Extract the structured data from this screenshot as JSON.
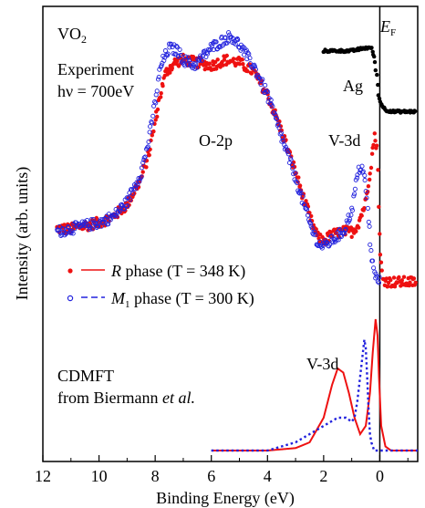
{
  "chart_data": {
    "type": "line",
    "xlabel": "Binding Energy (eV)",
    "ylabel": "Intensity (arb. units)",
    "xlim": [
      12,
      -1.35
    ],
    "x_reversed": true,
    "y_scale": "arbitrary (no tick labels)",
    "x_ticks": [
      12,
      10,
      8,
      6,
      4,
      2,
      0
    ],
    "x_tick_labels": [
      "12",
      "10",
      "8",
      "6",
      "4",
      "2",
      "0"
    ],
    "grid": false,
    "fermi_level_line_x": 0,
    "annotations": {
      "sample_main": "VO",
      "sample_sub": "2",
      "experiment_line1": "Experiment",
      "experiment_line2": "hν = 700eV",
      "o2p": "O-2p",
      "v3d_exp": "V-3d",
      "ag": "Ag",
      "ef_main": "E",
      "ef_sub": "F",
      "v3d_theory": "V-3d",
      "cdmft_line1": "CDMFT",
      "cdmft_line2_prefix": "from Biermann ",
      "cdmft_line2_italic": "et al."
    },
    "legend": {
      "placement": "center-left",
      "entries": [
        {
          "series": "R",
          "symbol": "R",
          "text": " phase (T = 348 K)"
        },
        {
          "series": "M1",
          "symbol": "M",
          "symbol_sub": "1",
          "text": " phase (T = 300 K)"
        }
      ]
    },
    "colors": {
      "R": "#ee1111",
      "M1": "#2222dd",
      "Ag": "#000000",
      "axis": "#000000"
    },
    "series": [
      {
        "id": "R",
        "kind": "experiment",
        "marker": "filled-dot",
        "points": [
          [
            11.5,
            0.29
          ],
          [
            11,
            0.29
          ],
          [
            10.5,
            0.3
          ],
          [
            10,
            0.31
          ],
          [
            9.5,
            0.33
          ],
          [
            9,
            0.37
          ],
          [
            8.5,
            0.46
          ],
          [
            8.2,
            0.55
          ],
          [
            8,
            0.65
          ],
          [
            7.8,
            0.75
          ],
          [
            7.6,
            0.82
          ],
          [
            7.3,
            0.85
          ],
          [
            7,
            0.86
          ],
          [
            6.5,
            0.85
          ],
          [
            6,
            0.84
          ],
          [
            5.5,
            0.86
          ],
          [
            5,
            0.85
          ],
          [
            4.5,
            0.82
          ],
          [
            4,
            0.74
          ],
          [
            3.5,
            0.62
          ],
          [
            3,
            0.48
          ],
          [
            2.5,
            0.33
          ],
          [
            2.2,
            0.26
          ],
          [
            2,
            0.25
          ],
          [
            1.7,
            0.27
          ],
          [
            1.3,
            0.28
          ],
          [
            1,
            0.28
          ],
          [
            0.8,
            0.3
          ],
          [
            0.5,
            0.38
          ],
          [
            0.3,
            0.52
          ],
          [
            0.2,
            0.6
          ],
          [
            0.1,
            0.57
          ],
          [
            0.05,
            0.42
          ],
          [
            0,
            0.22
          ],
          [
            -0.1,
            0.12
          ],
          [
            -0.3,
            0.11
          ],
          [
            -0.7,
            0.11
          ],
          [
            -1.3,
            0.11
          ]
        ]
      },
      {
        "id": "M1",
        "kind": "experiment",
        "marker": "open-circle",
        "points": [
          [
            11.5,
            0.28
          ],
          [
            11,
            0.29
          ],
          [
            10.5,
            0.3
          ],
          [
            10,
            0.31
          ],
          [
            9.5,
            0.33
          ],
          [
            9,
            0.38
          ],
          [
            8.5,
            0.48
          ],
          [
            8.2,
            0.6
          ],
          [
            8,
            0.72
          ],
          [
            7.8,
            0.84
          ],
          [
            7.5,
            0.9
          ],
          [
            7.2,
            0.89
          ],
          [
            7,
            0.86
          ],
          [
            6.6,
            0.84
          ],
          [
            6.3,
            0.87
          ],
          [
            6,
            0.9
          ],
          [
            5.5,
            0.93
          ],
          [
            5.3,
            0.94
          ],
          [
            5,
            0.91
          ],
          [
            4.5,
            0.84
          ],
          [
            4,
            0.74
          ],
          [
            3.5,
            0.6
          ],
          [
            3,
            0.46
          ],
          [
            2.5,
            0.31
          ],
          [
            2.2,
            0.24
          ],
          [
            2,
            0.23
          ],
          [
            1.7,
            0.25
          ],
          [
            1.3,
            0.28
          ],
          [
            1,
            0.35
          ],
          [
            0.8,
            0.47
          ],
          [
            0.7,
            0.5
          ],
          [
            0.6,
            0.49
          ],
          [
            0.5,
            0.43
          ],
          [
            0.4,
            0.32
          ],
          [
            0.3,
            0.2
          ],
          [
            0.2,
            0.14
          ],
          [
            0.1,
            0.12
          ],
          [
            0,
            0.11
          ]
        ]
      },
      {
        "id": "Ag",
        "kind": "reference",
        "marker": "filled-dot",
        "points": [
          [
            2,
            0.89
          ],
          [
            1.5,
            0.89
          ],
          [
            1,
            0.89
          ],
          [
            0.5,
            0.9
          ],
          [
            0.3,
            0.9
          ],
          [
            0.2,
            0.87
          ],
          [
            0.1,
            0.8
          ],
          [
            0.05,
            0.74
          ],
          [
            0,
            0.72
          ],
          [
            -0.2,
            0.69
          ],
          [
            -0.5,
            0.685
          ],
          [
            -1,
            0.685
          ],
          [
            -1.3,
            0.685
          ]
        ]
      },
      {
        "id": "R",
        "kind": "theory",
        "style": "solid",
        "points": [
          [
            6,
            0
          ],
          [
            4,
            0
          ],
          [
            3,
            0.003
          ],
          [
            2.5,
            0.01
          ],
          [
            2,
            0.04
          ],
          [
            1.7,
            0.08
          ],
          [
            1.5,
            0.1
          ],
          [
            1.3,
            0.095
          ],
          [
            1.1,
            0.07
          ],
          [
            0.9,
            0.04
          ],
          [
            0.7,
            0.02
          ],
          [
            0.5,
            0.03
          ],
          [
            0.35,
            0.07
          ],
          [
            0.25,
            0.12
          ],
          [
            0.15,
            0.16
          ],
          [
            0.08,
            0.14
          ],
          [
            0.03,
            0.09
          ],
          [
            -0.05,
            0.03
          ],
          [
            -0.2,
            0.005
          ],
          [
            -0.4,
            0
          ],
          [
            -1.35,
            0
          ]
        ]
      },
      {
        "id": "M1",
        "kind": "theory",
        "style": "dotted",
        "points": [
          [
            6,
            0
          ],
          [
            4,
            0
          ],
          [
            3,
            0.01
          ],
          [
            2.5,
            0.02
          ],
          [
            2,
            0.03
          ],
          [
            1.5,
            0.04
          ],
          [
            1.2,
            0.04
          ],
          [
            1,
            0.035
          ],
          [
            0.9,
            0.04
          ],
          [
            0.8,
            0.06
          ],
          [
            0.7,
            0.09
          ],
          [
            0.6,
            0.12
          ],
          [
            0.55,
            0.135
          ],
          [
            0.5,
            0.125
          ],
          [
            0.45,
            0.09
          ],
          [
            0.4,
            0.05
          ],
          [
            0.35,
            0.02
          ],
          [
            0.3,
            0.01
          ],
          [
            0.2,
            0
          ],
          [
            -1.35,
            0
          ]
        ]
      }
    ]
  }
}
